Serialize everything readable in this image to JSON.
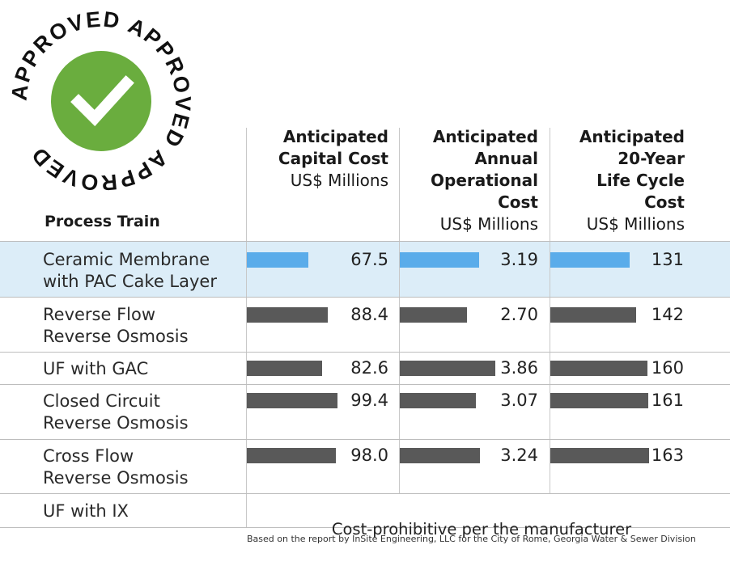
{
  "stamp": {
    "ring_text": "APPROVED APPROVED APPROVED",
    "check_color": "#6aad3e",
    "icon": "checkmark-icon"
  },
  "header": {
    "process_train": "Process Train",
    "capital": {
      "lines": [
        "Anticipated",
        "Capital Cost"
      ],
      "units": "US$ Millions"
    },
    "operational": {
      "lines": [
        "Anticipated",
        "Annual",
        "Operational",
        "Cost"
      ],
      "units": "US$ Millions"
    },
    "lifecycle": {
      "lines": [
        "Anticipated",
        "20-Year",
        "Life Cycle",
        "Cost"
      ],
      "units": "US$ Millions"
    }
  },
  "colors": {
    "highlight_bar": "#5aacea",
    "bar": "#595959",
    "highlight_row": "#dcedf8"
  },
  "chart_data": {
    "type": "bar",
    "categories": [
      "Ceramic Membrane with PAC Cake Layer",
      "Reverse Flow Reverse Osmosis",
      "UF with GAC",
      "Closed Circuit Reverse Osmosis",
      "Cross Flow Reverse Osmosis",
      "UF with IX"
    ],
    "category_lines": [
      [
        "Ceramic Membrane",
        "with PAC Cake Layer"
      ],
      [
        "Reverse Flow",
        "Reverse Osmosis"
      ],
      [
        "UF with GAC"
      ],
      [
        "Closed Circuit",
        "Reverse Osmosis"
      ],
      [
        "Cross Flow",
        "Reverse Osmosis"
      ],
      [
        "UF with IX"
      ]
    ],
    "highlighted_category": "Ceramic Membrane with PAC Cake Layer",
    "series": [
      {
        "name": "Anticipated Capital Cost US$ Millions",
        "values": [
          67.5,
          88.4,
          82.6,
          99.4,
          98.0,
          null
        ],
        "labels": [
          "67.5",
          "88.4",
          "82.6",
          "99.4",
          "98.0",
          ""
        ]
      },
      {
        "name": "Anticipated Annual Operational Cost US$ Millions",
        "values": [
          3.19,
          2.7,
          3.86,
          3.07,
          3.24,
          null
        ],
        "labels": [
          "3.19",
          "2.70",
          "3.86",
          "3.07",
          "3.24",
          ""
        ]
      },
      {
        "name": "Anticipated 20-Year Life Cycle Cost US$ Millions",
        "values": [
          131,
          142,
          160,
          161,
          163,
          null
        ],
        "labels": [
          "131",
          "142",
          "160",
          "161",
          "163",
          ""
        ]
      }
    ],
    "note": "Cost-prohibitive per the manufacturer",
    "source": "Based on the report by InSite Engineering, LLC for the City of Rome, Georgia Water & Sewer Division"
  }
}
